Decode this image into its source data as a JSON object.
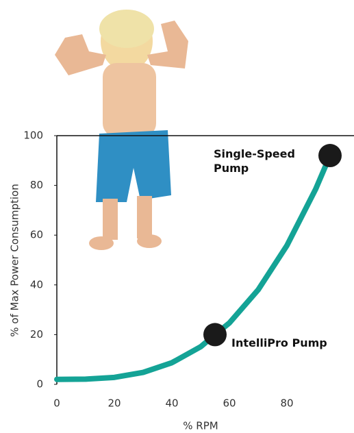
{
  "chart_data": {
    "type": "line",
    "x": [
      0,
      10,
      20,
      30,
      40,
      50,
      55,
      60,
      70,
      80,
      90,
      95
    ],
    "values": [
      2,
      2.1,
      2.8,
      4.8,
      8.7,
      15.1,
      20,
      24.7,
      38,
      55.8,
      78.5,
      92
    ],
    "color": "#14a396",
    "markers": {
      "x": [
        55,
        95
      ],
      "values": [
        20,
        92
      ],
      "labels": [
        "IntelliPro Pump",
        "Single-Speed Pump"
      ],
      "color": "#1a1a1a"
    },
    "xlabel": "% RPM",
    "ylabel": "% of Max Power Consumption",
    "xlim": [
      0,
      100
    ],
    "ylim": [
      0,
      100
    ],
    "xticks": [
      0,
      20,
      40,
      60,
      80
    ],
    "yticks": [
      0,
      20,
      40,
      60,
      80,
      100
    ]
  }
}
